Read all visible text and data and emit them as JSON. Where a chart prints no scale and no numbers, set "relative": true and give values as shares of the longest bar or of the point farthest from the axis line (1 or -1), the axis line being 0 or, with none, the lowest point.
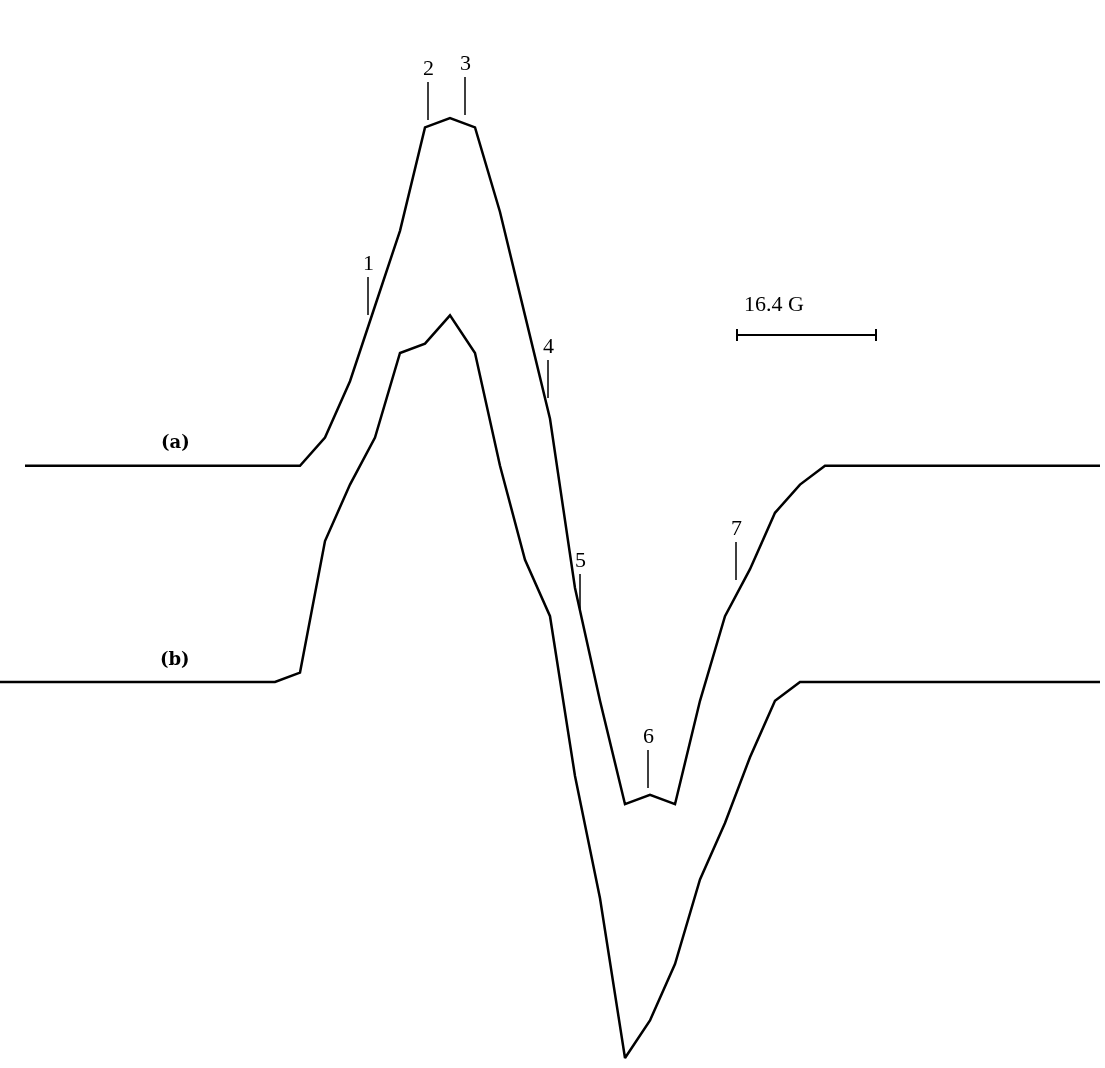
{
  "chart_data": {
    "type": "line",
    "relative": true,
    "line_style": "solid",
    "categories": [
      null,
      null,
      null,
      null,
      null,
      null,
      null,
      null,
      null,
      null,
      null,
      null,
      null,
      null,
      null,
      null,
      null,
      null,
      null,
      null,
      null,
      null,
      null,
      null,
      null,
      null,
      null,
      null,
      null,
      null,
      null,
      null,
      null,
      null,
      null,
      null,
      null,
      null,
      null,
      null,
      null,
      null,
      null,
      null,
      null
    ],
    "series": [
      {
        "name": "(a)",
        "color": "#000000",
        "values": [
          null,
          0.63,
          0.63,
          0.63,
          0.63,
          0.63,
          0.63,
          0.63,
          0.63,
          0.63,
          0.63,
          0.63,
          0.63,
          0.66,
          0.72,
          0.8,
          0.88,
          0.99,
          1.0,
          0.99,
          0.9,
          0.79,
          0.68,
          0.5,
          0.38,
          0.27,
          0.28,
          0.27,
          0.38,
          0.47,
          0.52,
          0.58,
          0.61,
          0.63,
          0.63,
          0.63,
          0.63,
          0.63,
          0.63,
          0.63,
          0.63,
          0.63,
          0.63,
          0.63,
          0.63
        ]
      },
      {
        "name": "(b)",
        "color": "#000000",
        "values": [
          0.4,
          0.4,
          0.4,
          0.4,
          0.4,
          0.4,
          0.4,
          0.4,
          0.4,
          0.4,
          0.4,
          0.4,
          0.41,
          0.55,
          0.61,
          0.66,
          0.75,
          0.76,
          0.79,
          0.75,
          0.63,
          0.53,
          0.47,
          0.3,
          0.17,
          0.0,
          0.04,
          0.1,
          0.19,
          0.25,
          0.32,
          0.38,
          0.4,
          0.4,
          0.4,
          0.4,
          0.4,
          0.4,
          0.4,
          0.4,
          0.4,
          0.4,
          0.4,
          0.4,
          0.4
        ]
      }
    ],
    "annotations": [
      "1",
      "2",
      "3",
      "4",
      "5",
      "6",
      "7",
      "16.4 G"
    ]
  }
}
